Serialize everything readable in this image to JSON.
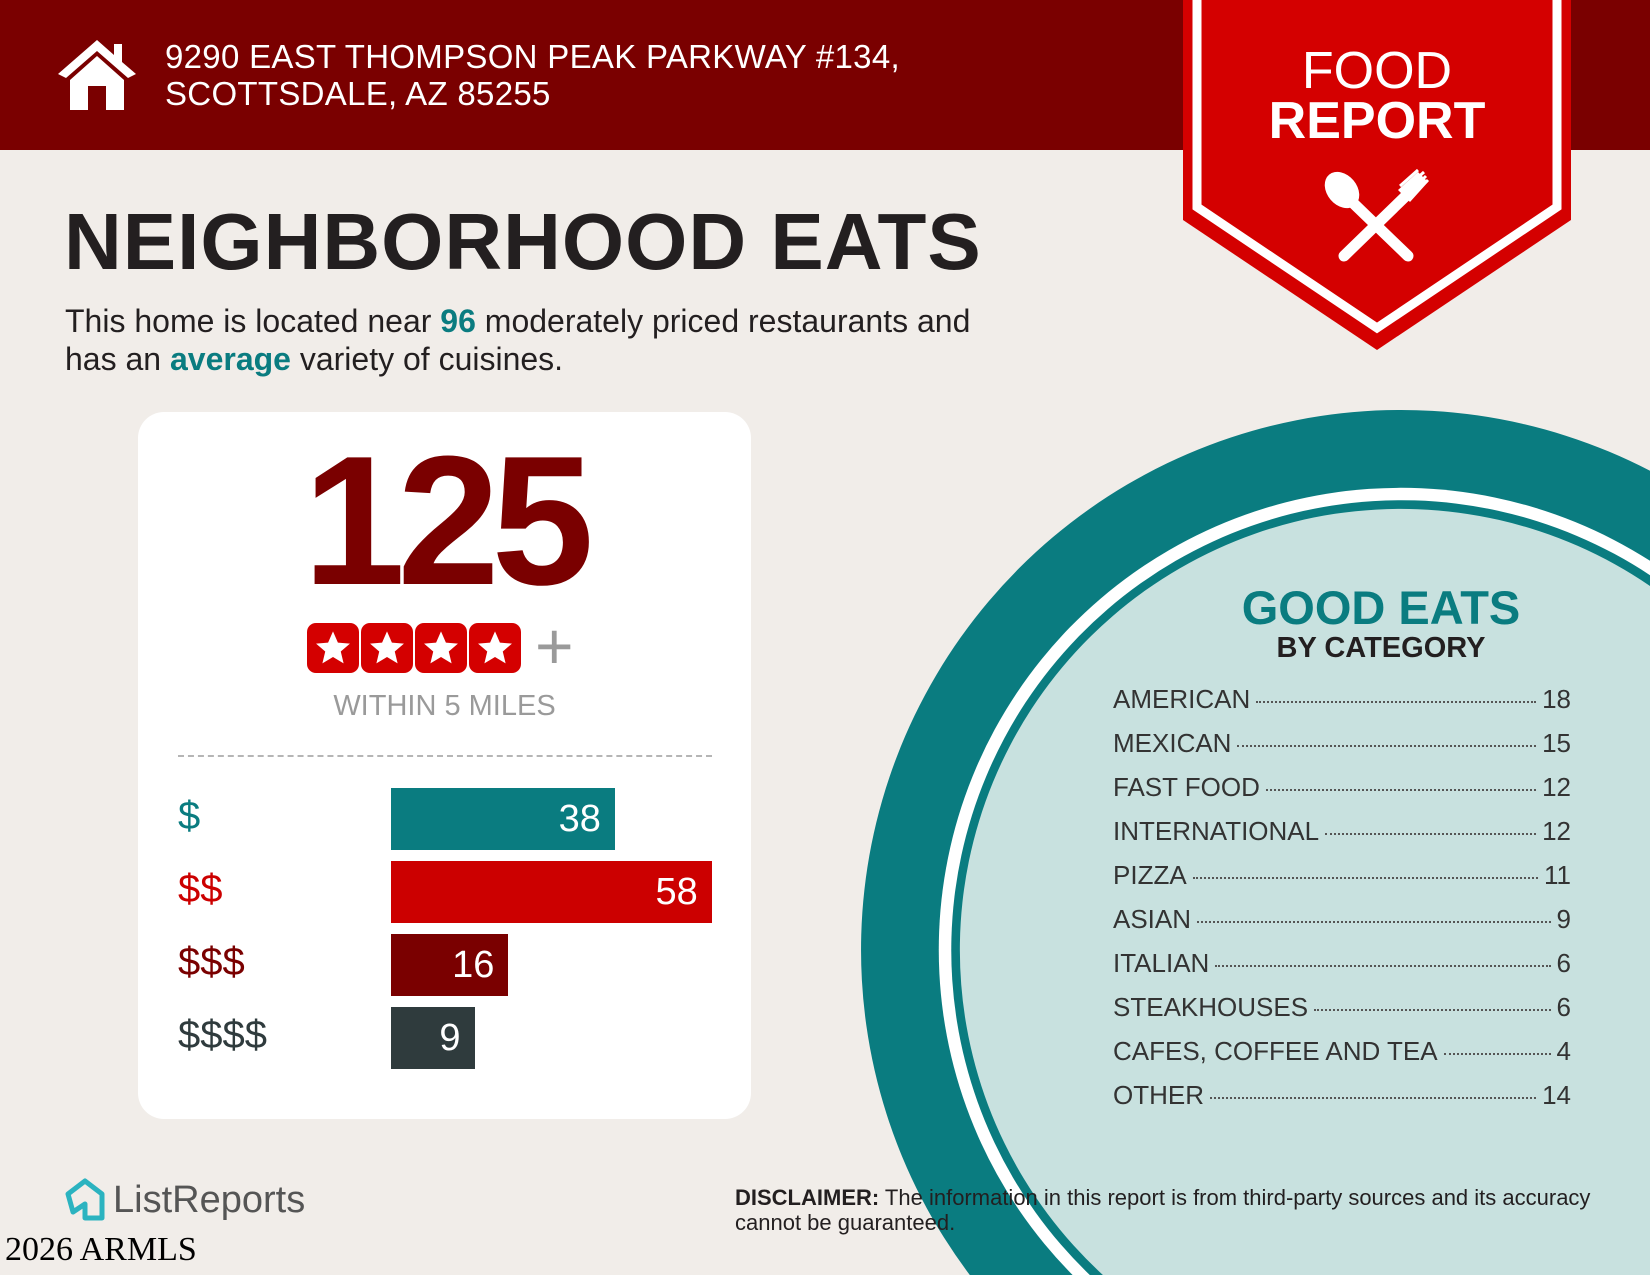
{
  "header": {
    "address_line1": "9290 EAST THOMPSON PEAK PARKWAY #134,",
    "address_line2": "SCOTTSDALE, AZ 85255",
    "icon": "house-icon",
    "badge": {
      "line1": "FOOD",
      "line2": "REPORT",
      "icon": "spoon-fork-icon"
    }
  },
  "main": {
    "title": "NEIGHBORHOOD EATS",
    "subtitle": {
      "part1": "This home is located near ",
      "count": "96",
      "part2": " moderately priced restaurants and",
      "part3": "has an ",
      "variety": "average",
      "part4": " variety of cuisines."
    }
  },
  "summary": {
    "total": "125",
    "rating_stars": 4,
    "rating_suffix": "+",
    "within": "WITHIN 5 MILES"
  },
  "chart_data": {
    "type": "bar",
    "categories": [
      "$",
      "$$",
      "$$$",
      "$$$$"
    ],
    "values": [
      38,
      58,
      16,
      9
    ],
    "colors": [
      "#0a7c80",
      "#cc0000",
      "#7a0000",
      "#2f3b3d"
    ]
  },
  "good_eats": {
    "title": "GOOD EATS",
    "subtitle": "BY CATEGORY",
    "categories": [
      {
        "name": "AMERICAN",
        "count": "18"
      },
      {
        "name": "MEXICAN",
        "count": "15"
      },
      {
        "name": "FAST FOOD",
        "count": "12"
      },
      {
        "name": "INTERNATIONAL",
        "count": "12"
      },
      {
        "name": "PIZZA",
        "count": "11"
      },
      {
        "name": "ASIAN",
        "count": "9"
      },
      {
        "name": "ITALIAN",
        "count": "6"
      },
      {
        "name": "STEAKHOUSES",
        "count": "6"
      },
      {
        "name": "CAFES, COFFEE AND TEA",
        "count": "4"
      },
      {
        "name": "OTHER",
        "count": "14"
      }
    ]
  },
  "footer": {
    "disclaimer_label": "DISCLAIMER:",
    "disclaimer_text": " The information in this report is from third-party sources and its accuracy cannot be guaranteed.",
    "logo": "ListReports",
    "watermark": "2026 ARMLS"
  },
  "colors": {
    "header": "#7a0000",
    "badge": "#d40000",
    "teal": "#0a7c80",
    "light_teal": "#c8e1df"
  }
}
